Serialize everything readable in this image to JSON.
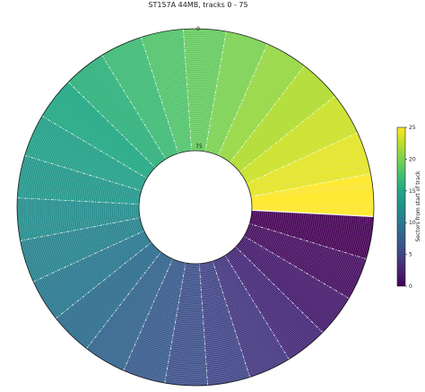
{
  "chart_data": {
    "type": "polar-heatmap",
    "title": "ST157A 44MB, tracks 0 - 75",
    "radial_axis": {
      "outer_tick_label": "0",
      "inner_tick_label": "75",
      "range": [
        0,
        75
      ]
    },
    "sectors_per_track": 26,
    "sector_values": [
      0,
      1,
      2,
      3,
      4,
      5,
      6,
      7,
      8,
      9,
      10,
      11,
      12,
      13,
      14,
      15,
      16,
      17,
      18,
      19,
      20,
      21,
      22,
      23,
      24,
      25
    ],
    "colorbar": {
      "label": "Sectors from start of track",
      "range": [
        0,
        25
      ],
      "ticks": [
        "0",
        "5",
        "10",
        "15",
        "20",
        "25"
      ],
      "colormap": "viridis"
    }
  }
}
